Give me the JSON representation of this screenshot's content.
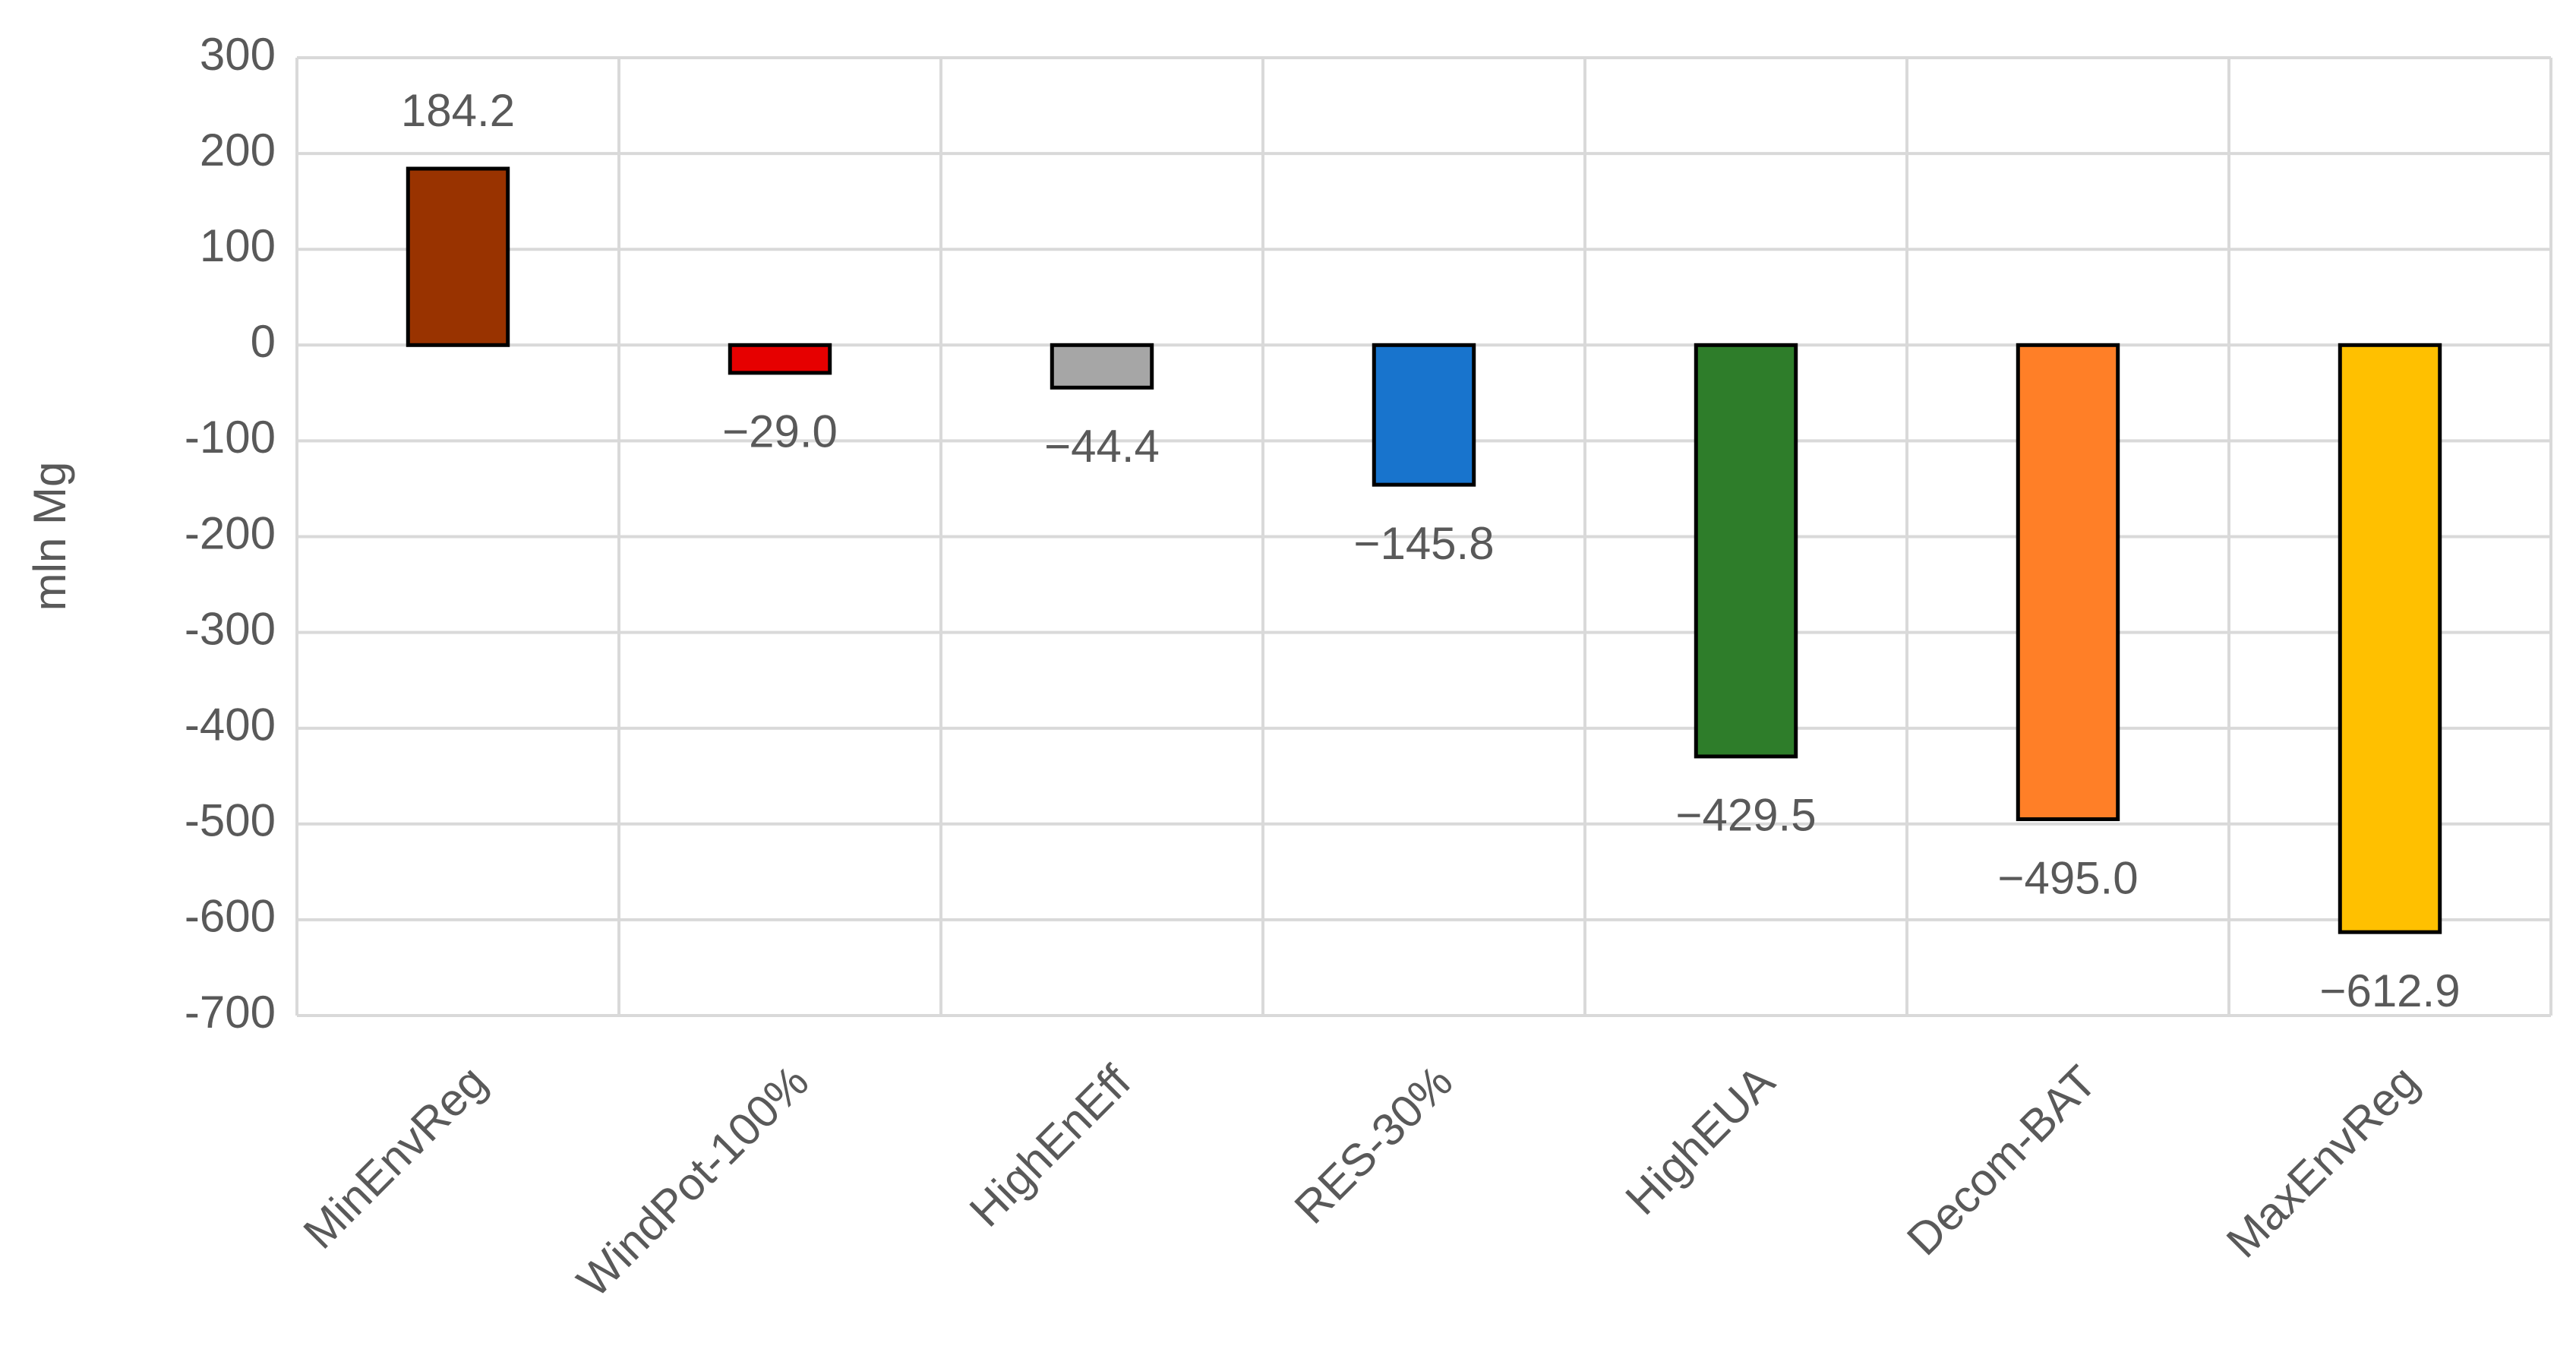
{
  "chart_data": {
    "type": "bar",
    "y_label": "mln Mg",
    "categories": [
      "MinEnvReg",
      "WindPot-100%",
      "HighEnEff",
      "RES-30%",
      "HighEUA",
      "Decom-BAT",
      "MaxEnvReg"
    ],
    "values": [
      184.2,
      -29.0,
      -44.4,
      -145.8,
      -429.5,
      -495.0,
      -612.9
    ],
    "value_labels": [
      "184.2",
      "−29.0",
      "−44.4",
      "−145.8",
      "−429.5",
      "−495.0",
      "−612.9"
    ],
    "colors": [
      "#993300",
      "#e60000",
      "#a6a6a6",
      "#1874cd",
      "#2e7d2a",
      "#ff7f27",
      "#ffc000"
    ],
    "ylim": [
      -700,
      300
    ],
    "yticks": [
      -700,
      -600,
      -500,
      -400,
      -300,
      -200,
      -100,
      0,
      100,
      200,
      300
    ],
    "grid": true
  }
}
